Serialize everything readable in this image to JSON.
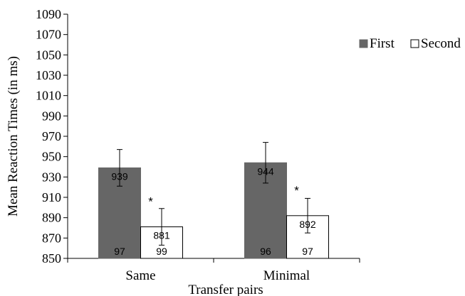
{
  "chart_data": {
    "type": "bar",
    "categories": [
      "Same",
      "Minimal"
    ],
    "series": [
      {
        "name": "First",
        "color": "#666666",
        "values": [
          939,
          944
        ],
        "error_low": [
          921,
          924
        ],
        "error_high": [
          957,
          964
        ],
        "value_labels": [
          "939",
          "944"
        ],
        "n_labels": [
          "97",
          "96"
        ]
      },
      {
        "name": "Second",
        "color": "#ffffff",
        "values": [
          881,
          892
        ],
        "error_low": [
          863,
          875
        ],
        "error_high": [
          899,
          909
        ],
        "value_labels": [
          "881",
          "892"
        ],
        "n_labels": [
          "99",
          "97"
        ]
      }
    ],
    "significance_marks": [
      "*",
      "*"
    ],
    "xlabel": "Transfer pairs",
    "ylabel": "Mean Reaction Times (in ms)",
    "ylim": [
      850,
      1090
    ],
    "yticks": [
      "850",
      "870",
      "890",
      "910",
      "930",
      "950",
      "970",
      "990",
      "1010",
      "1030",
      "1050",
      "1070",
      "1090"
    ],
    "grid": false,
    "legend_position": "top-right"
  }
}
